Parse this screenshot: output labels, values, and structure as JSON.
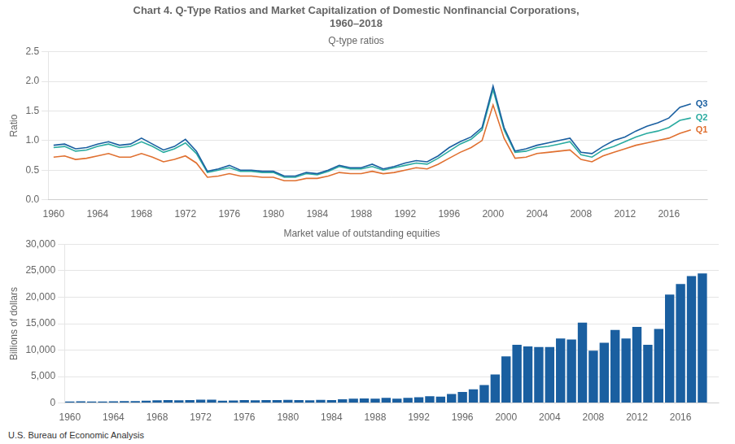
{
  "chart_data": [
    {
      "type": "line",
      "title": [
        "Chart 4. Q-Type Ratios and Market Capitalization of Domestic Nonfinancial Corporations,",
        "1960–2018"
      ],
      "subtitle": "Q-type ratios",
      "ylabel": "Ratio",
      "x": [
        1960,
        1961,
        1962,
        1963,
        1964,
        1965,
        1966,
        1967,
        1968,
        1969,
        1970,
        1971,
        1972,
        1973,
        1974,
        1975,
        1976,
        1977,
        1978,
        1979,
        1980,
        1981,
        1982,
        1983,
        1984,
        1985,
        1986,
        1987,
        1988,
        1989,
        1990,
        1991,
        1992,
        1993,
        1994,
        1995,
        1996,
        1997,
        1998,
        1999,
        2000,
        2001,
        2002,
        2003,
        2004,
        2005,
        2006,
        2007,
        2008,
        2009,
        2010,
        2011,
        2012,
        2013,
        2014,
        2015,
        2016,
        2017,
        2018
      ],
      "series": [
        {
          "name": "Q3",
          "color": "#1a5fa0",
          "values": [
            0.92,
            0.94,
            0.86,
            0.88,
            0.94,
            0.98,
            0.92,
            0.94,
            1.04,
            0.94,
            0.84,
            0.9,
            1.02,
            0.82,
            0.48,
            0.52,
            0.58,
            0.5,
            0.5,
            0.48,
            0.48,
            0.4,
            0.4,
            0.46,
            0.44,
            0.5,
            0.58,
            0.54,
            0.54,
            0.6,
            0.52,
            0.56,
            0.62,
            0.66,
            0.64,
            0.74,
            0.88,
            0.98,
            1.06,
            1.22,
            1.92,
            1.22,
            0.82,
            0.86,
            0.92,
            0.96,
            1.0,
            1.04,
            0.8,
            0.78,
            0.9,
            1.0,
            1.06,
            1.16,
            1.24,
            1.3,
            1.38,
            1.56,
            1.62
          ]
        },
        {
          "name": "Q2",
          "color": "#2aaba0",
          "values": [
            0.88,
            0.9,
            0.82,
            0.84,
            0.9,
            0.94,
            0.88,
            0.9,
            0.98,
            0.9,
            0.8,
            0.86,
            0.96,
            0.78,
            0.46,
            0.5,
            0.54,
            0.48,
            0.48,
            0.46,
            0.46,
            0.38,
            0.38,
            0.44,
            0.42,
            0.48,
            0.56,
            0.52,
            0.52,
            0.56,
            0.5,
            0.54,
            0.58,
            0.62,
            0.6,
            0.7,
            0.82,
            0.94,
            1.02,
            1.18,
            1.86,
            1.18,
            0.8,
            0.82,
            0.88,
            0.9,
            0.94,
            0.98,
            0.76,
            0.72,
            0.84,
            0.9,
            0.98,
            1.06,
            1.12,
            1.16,
            1.22,
            1.34,
            1.38
          ]
        },
        {
          "name": "Q1",
          "color": "#e07030",
          "values": [
            0.72,
            0.74,
            0.68,
            0.7,
            0.74,
            0.78,
            0.72,
            0.72,
            0.78,
            0.72,
            0.64,
            0.68,
            0.74,
            0.62,
            0.38,
            0.4,
            0.44,
            0.4,
            0.4,
            0.38,
            0.38,
            0.32,
            0.32,
            0.36,
            0.36,
            0.4,
            0.46,
            0.44,
            0.44,
            0.48,
            0.44,
            0.46,
            0.5,
            0.54,
            0.52,
            0.6,
            0.7,
            0.8,
            0.88,
            1.0,
            1.6,
            1.04,
            0.7,
            0.72,
            0.78,
            0.8,
            0.82,
            0.84,
            0.68,
            0.64,
            0.74,
            0.8,
            0.86,
            0.92,
            0.96,
            1.0,
            1.04,
            1.12,
            1.18
          ]
        }
      ],
      "xlim": [
        1959.5,
        2019.5
      ],
      "xticks": [
        1960,
        1964,
        1968,
        1972,
        1976,
        1980,
        1984,
        1988,
        1992,
        1996,
        2000,
        2004,
        2008,
        2012,
        2016
      ],
      "ylim": [
        0.0,
        2.5
      ],
      "yticks": [
        {
          "value": 0,
          "label": "0.0"
        },
        0.5,
        {
          "value": 1,
          "label": "1.0"
        },
        1.5,
        {
          "value": 2,
          "label": "2.0"
        },
        2.5
      ],
      "grid": "y"
    },
    {
      "type": "bar",
      "subtitle": "Market value of outstanding equities",
      "ylabel": "Billions of dollars",
      "x": [
        1960,
        1961,
        1962,
        1963,
        1964,
        1965,
        1966,
        1967,
        1968,
        1969,
        1970,
        1971,
        1972,
        1973,
        1974,
        1975,
        1976,
        1977,
        1978,
        1979,
        1980,
        1981,
        1982,
        1983,
        1984,
        1985,
        1986,
        1987,
        1988,
        1989,
        1990,
        1991,
        1992,
        1993,
        1994,
        1995,
        1996,
        1997,
        1998,
        1999,
        2000,
        2001,
        2002,
        2003,
        2004,
        2005,
        2006,
        2007,
        2008,
        2009,
        2010,
        2011,
        2012,
        2013,
        2014,
        2015,
        2016,
        2017,
        2018
      ],
      "values": [
        300,
        310,
        290,
        300,
        330,
        370,
        380,
        430,
        500,
        540,
        500,
        560,
        640,
        620,
        440,
        480,
        540,
        520,
        540,
        560,
        600,
        560,
        520,
        600,
        560,
        700,
        820,
        860,
        840,
        980,
        840,
        980,
        1100,
        1300,
        1200,
        1700,
        2100,
        2600,
        3400,
        5400,
        8800,
        11000,
        10700,
        10600,
        10600,
        12200,
        12000,
        15200,
        9900,
        11400,
        13800,
        12200,
        14400,
        11000,
        14000,
        20500,
        22500,
        24000,
        24500
      ],
      "color": "#1a5fa0",
      "xlim": [
        1959.5,
        2019.5
      ],
      "xticks": [
        1960,
        1964,
        1968,
        1972,
        1976,
        1980,
        1984,
        1988,
        1992,
        1996,
        2000,
        2004,
        2008,
        2012,
        2016
      ],
      "ylim": [
        0,
        30000
      ],
      "yticks": [
        0,
        {
          "value": 5000,
          "label": "5,000"
        },
        {
          "value": 10000,
          "label": "10,000"
        },
        {
          "value": 15000,
          "label": "15,000"
        },
        {
          "value": 20000,
          "label": "20,000"
        },
        {
          "value": 25000,
          "label": "25,000"
        },
        {
          "value": 30000,
          "label": "30,000"
        }
      ],
      "grid": "y",
      "annotations": [
        "U.S. Bureau of Economic Analysis"
      ]
    }
  ]
}
